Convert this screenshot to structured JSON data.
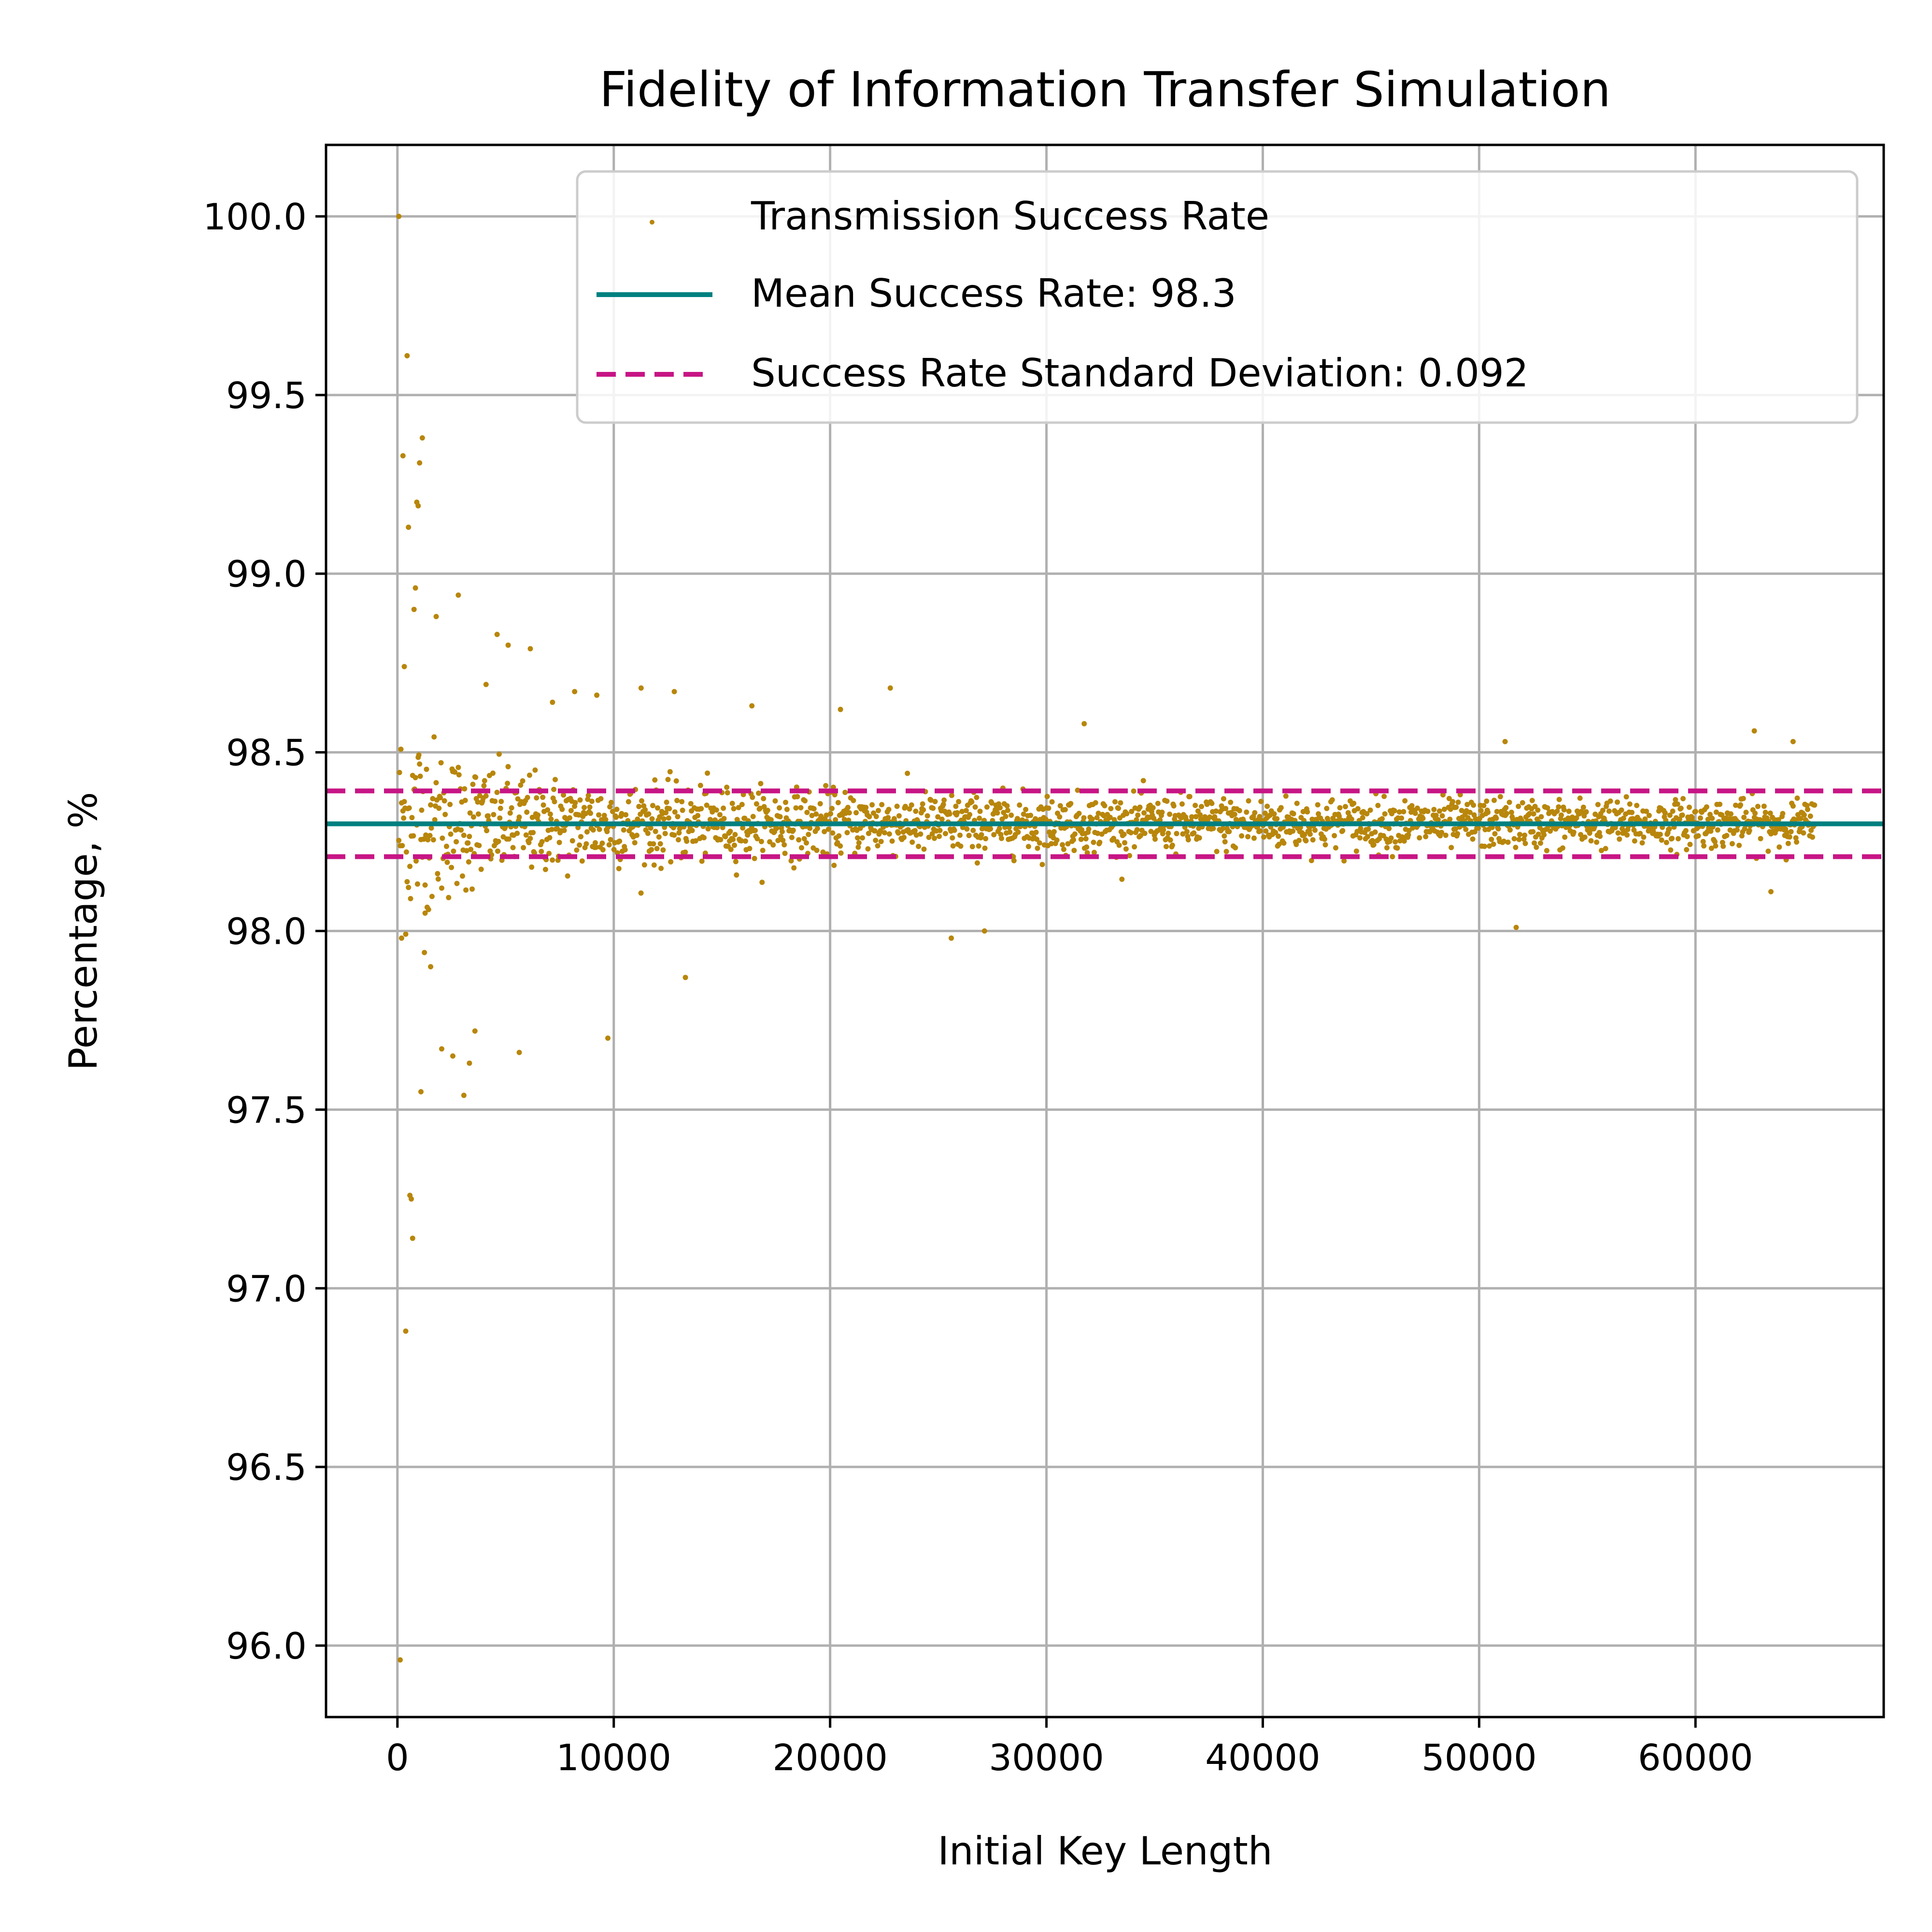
{
  "chart_data": {
    "type": "scatter",
    "title": "Fidelity of Information Transfer Simulation",
    "xlabel": "Initial Key Length",
    "ylabel": "Percentage, %",
    "xlim": [
      -3300,
      68700
    ],
    "ylim": [
      95.8,
      100.2
    ],
    "xticks": [
      0,
      10000,
      20000,
      30000,
      40000,
      50000,
      60000
    ],
    "xtick_labels": [
      "0",
      "10000",
      "20000",
      "30000",
      "40000",
      "50000",
      "60000"
    ],
    "yticks": [
      96.0,
      96.5,
      97.0,
      97.5,
      98.0,
      98.5,
      99.0,
      99.5,
      100.0
    ],
    "ytick_labels": [
      "96.0",
      "96.5",
      "97.0",
      "97.5",
      "98.0",
      "98.5",
      "99.0",
      "99.5",
      "100.0"
    ],
    "grid": true,
    "legend_position": "top-right",
    "series": [
      {
        "name": "Transmission Success Rate",
        "kind": "scatter",
        "color": "#b8860b",
        "x_range": [
          64,
          65536
        ],
        "n_points": 2048,
        "center": 98.3,
        "sample_points": [
          [
            64,
            100.0
          ],
          [
            128,
            95.96
          ],
          [
            192,
            97.98
          ],
          [
            256,
            99.33
          ],
          [
            320,
            98.74
          ],
          [
            384,
            96.88
          ],
          [
            448,
            99.61
          ],
          [
            512,
            99.13
          ],
          [
            576,
            97.26
          ],
          [
            640,
            97.25
          ],
          [
            704,
            97.14
          ],
          [
            768,
            98.9
          ],
          [
            832,
            98.96
          ],
          [
            896,
            99.2
          ],
          [
            960,
            99.19
          ],
          [
            1024,
            99.31
          ],
          [
            1088,
            97.55
          ],
          [
            1152,
            99.38
          ],
          [
            1280,
            98.05
          ],
          [
            1536,
            97.9
          ],
          [
            1792,
            98.88
          ],
          [
            2048,
            97.67
          ],
          [
            2560,
            97.65
          ],
          [
            2816,
            98.94
          ],
          [
            3072,
            97.54
          ],
          [
            3328,
            97.63
          ],
          [
            3584,
            97.72
          ],
          [
            4096,
            98.69
          ],
          [
            4608,
            98.83
          ],
          [
            5120,
            98.8
          ],
          [
            5632,
            97.66
          ],
          [
            6144,
            98.79
          ],
          [
            7168,
            98.64
          ],
          [
            8192,
            98.67
          ],
          [
            9216,
            98.66
          ],
          [
            9728,
            97.7
          ],
          [
            11264,
            98.68
          ],
          [
            12800,
            98.67
          ],
          [
            13312,
            97.87
          ],
          [
            16384,
            98.63
          ],
          [
            20480,
            98.62
          ],
          [
            22784,
            98.68
          ],
          [
            25600,
            97.98
          ],
          [
            27136,
            98.0
          ],
          [
            31744,
            98.58
          ],
          [
            51200,
            98.53
          ],
          [
            51712,
            98.01
          ],
          [
            62720,
            98.56
          ],
          [
            63488,
            98.11
          ],
          [
            64512,
            98.53
          ]
        ]
      },
      {
        "name": "Mean Success Rate: 98.3",
        "kind": "hline",
        "y": 98.3,
        "color": "#008080",
        "style": "solid"
      },
      {
        "name": "Success Rate Standard Deviation: 0.092",
        "kind": "hline-pair",
        "y": [
          98.208,
          98.392
        ],
        "color": "#c71585",
        "style": "dashed"
      }
    ]
  }
}
